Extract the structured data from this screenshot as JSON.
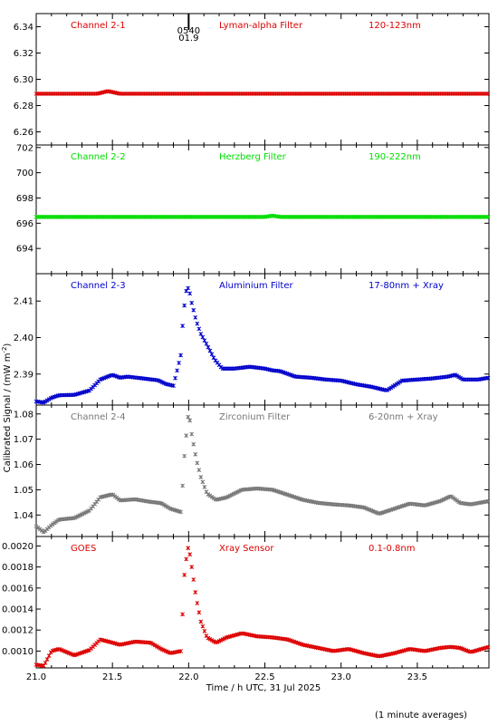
{
  "figure": {
    "ylabel": "Calibrated Signal / (mW m",
    "ylabel_sup": "-2",
    "ylabel_close": ")",
    "xlabel": "Time / h UTC, 31 Jul 2025",
    "footnote": "(1 minute averages)",
    "marker_label_top": "0540",
    "marker_label_bottom": "01.9",
    "marker_x": 22.0
  },
  "chart_data": [
    {
      "type": "scatter",
      "panel": "Channel 2-1",
      "labels": [
        "Channel 2-1",
        "Lyman-alpha Filter",
        "120-123nm"
      ],
      "color": "#dd0000",
      "xlim": [
        21.0,
        23.97
      ],
      "ylim": [
        6.25,
        6.35
      ],
      "yticks": [
        6.26,
        6.28,
        6.3,
        6.32,
        6.34
      ],
      "ytick_labels": [
        "6.26",
        "6.28",
        "6.30",
        "6.32",
        "6.34"
      ],
      "x": [
        21.0,
        21.3,
        21.4,
        21.47,
        21.55,
        21.7,
        22.0,
        22.5,
        23.0,
        23.5,
        23.97
      ],
      "y": [
        6.289,
        6.289,
        6.289,
        6.291,
        6.289,
        6.289,
        6.289,
        6.289,
        6.289,
        6.289,
        6.289
      ]
    },
    {
      "type": "scatter",
      "panel": "Channel 2-2",
      "labels": [
        "Channel 2-2",
        "Herzberg Filter",
        "190-222nm"
      ],
      "color": "#00dd00",
      "xlim": [
        21.0,
        23.97
      ],
      "ylim": [
        692.0,
        702.2
      ],
      "yticks": [
        694,
        696,
        698,
        700,
        702
      ],
      "ytick_labels": [
        "694",
        "696",
        "698",
        "700",
        "702"
      ],
      "x": [
        21.0,
        21.5,
        22.0,
        22.5,
        22.55,
        22.6,
        23.0,
        23.5,
        23.97
      ],
      "y": [
        696.5,
        696.5,
        696.5,
        696.5,
        696.6,
        696.5,
        696.5,
        696.5,
        696.5
      ]
    },
    {
      "type": "scatter",
      "panel": "Channel 2-3",
      "labels": [
        "Channel 2-3",
        "Aluminium Filter",
        "17-80nm + Xray"
      ],
      "color": "#0000cc",
      "xlim": [
        21.0,
        23.97
      ],
      "ylim": [
        2.3815,
        2.4175
      ],
      "yticks": [
        2.39,
        2.4,
        2.41
      ],
      "ytick_labels": [
        "2.39",
        "2.40",
        "2.41"
      ],
      "x": [
        21.0,
        21.05,
        21.1,
        21.15,
        21.25,
        21.35,
        21.42,
        21.5,
        21.55,
        21.6,
        21.7,
        21.8,
        21.85,
        21.9,
        21.95,
        21.96,
        21.98,
        22.0,
        22.02,
        22.05,
        22.08,
        22.12,
        22.17,
        22.22,
        22.3,
        22.4,
        22.5,
        22.55,
        22.6,
        22.7,
        22.8,
        22.9,
        23.0,
        23.1,
        23.2,
        23.3,
        23.4,
        23.5,
        23.6,
        23.7,
        23.75,
        23.8,
        23.9,
        23.97
      ],
      "y": [
        2.3825,
        2.3822,
        2.3835,
        2.3842,
        2.3843,
        2.3855,
        2.3885,
        2.3898,
        2.389,
        2.3893,
        2.3888,
        2.3883,
        2.3873,
        2.3868,
        2.3955,
        2.4032,
        2.4125,
        2.4138,
        2.4095,
        2.4045,
        2.401,
        2.398,
        2.394,
        2.3915,
        2.3915,
        2.392,
        2.3915,
        2.391,
        2.3908,
        2.3893,
        2.389,
        2.3885,
        2.3882,
        2.3872,
        2.3865,
        2.3855,
        2.3882,
        2.3885,
        2.3888,
        2.3893,
        2.3898,
        2.3885,
        2.3885,
        2.389
      ]
    },
    {
      "type": "scatter",
      "panel": "Channel 2-4",
      "labels": [
        "Channel 2-4",
        "Zirconium Filter",
        "6-20nm + Xray"
      ],
      "color": "#777777",
      "xlim": [
        21.0,
        23.97
      ],
      "ylim": [
        1.0315,
        1.0835
      ],
      "yticks": [
        1.04,
        1.05,
        1.06,
        1.07,
        1.08
      ],
      "ytick_labels": [
        "1.04",
        "1.05",
        "1.06",
        "1.07",
        "1.08"
      ],
      "x": [
        21.0,
        21.05,
        21.1,
        21.15,
        21.25,
        21.35,
        21.42,
        21.5,
        21.55,
        21.65,
        21.75,
        21.82,
        21.88,
        21.95,
        21.97,
        21.99,
        22.0,
        22.02,
        22.05,
        22.08,
        22.12,
        22.18,
        22.25,
        22.35,
        22.45,
        22.55,
        22.65,
        22.75,
        22.85,
        22.95,
        23.05,
        23.15,
        23.25,
        23.35,
        23.45,
        23.55,
        23.65,
        23.72,
        23.78,
        23.85,
        23.97
      ],
      "y": [
        1.0355,
        1.0332,
        1.036,
        1.0382,
        1.0388,
        1.0418,
        1.047,
        1.0482,
        1.0458,
        1.0462,
        1.0452,
        1.0447,
        1.0425,
        1.0412,
        1.062,
        1.0755,
        1.081,
        1.072,
        1.062,
        1.055,
        1.0485,
        1.046,
        1.047,
        1.05,
        1.0505,
        1.05,
        1.048,
        1.046,
        1.0448,
        1.0442,
        1.0438,
        1.043,
        1.0405,
        1.0425,
        1.0445,
        1.0438,
        1.0455,
        1.0475,
        1.0448,
        1.0442,
        1.0455
      ]
    },
    {
      "type": "scatter",
      "panel": "GOES",
      "labels": [
        "GOES",
        "Xray Sensor",
        "0.1-0.8nm"
      ],
      "color": "#dd0000",
      "xlim": [
        21.0,
        23.97
      ],
      "ylim": [
        0.00084,
        0.00209
      ],
      "yticks": [
        0.001,
        0.0012,
        0.0014,
        0.0016,
        0.0018,
        0.002
      ],
      "ytick_labels": [
        "0.0010",
        "0.0012",
        "0.0014",
        "0.0016",
        "0.0018",
        "0.0020"
      ],
      "x": [
        21.0,
        21.05,
        21.1,
        21.15,
        21.25,
        21.35,
        21.42,
        21.5,
        21.55,
        21.65,
        21.75,
        21.82,
        21.88,
        21.95,
        21.97,
        21.99,
        22.0,
        22.02,
        22.05,
        22.08,
        22.12,
        22.18,
        22.25,
        22.35,
        22.45,
        22.55,
        22.65,
        22.75,
        22.85,
        22.95,
        23.05,
        23.15,
        23.25,
        23.35,
        23.45,
        23.55,
        23.65,
        23.72,
        23.78,
        23.85,
        23.97
      ],
      "y": [
        0.00087,
        0.00086,
        0.001,
        0.00102,
        0.00096,
        0.00101,
        0.00111,
        0.00108,
        0.00106,
        0.00109,
        0.00108,
        0.00102,
        0.00098,
        0.001,
        0.0017,
        0.00195,
        0.002,
        0.0018,
        0.0015,
        0.00128,
        0.00113,
        0.00108,
        0.00113,
        0.00117,
        0.00114,
        0.00113,
        0.00111,
        0.00106,
        0.00103,
        0.001,
        0.00102,
        0.00098,
        0.00095,
        0.00098,
        0.00102,
        0.001,
        0.00103,
        0.00104,
        0.00103,
        0.00099,
        0.00104
      ]
    }
  ],
  "xaxis": {
    "ticks": [
      21.0,
      21.5,
      22.0,
      22.5,
      23.0,
      23.5
    ],
    "tick_labels": [
      "21.0",
      "21.5",
      "22.0",
      "22.5",
      "23.0",
      "23.5"
    ]
  }
}
